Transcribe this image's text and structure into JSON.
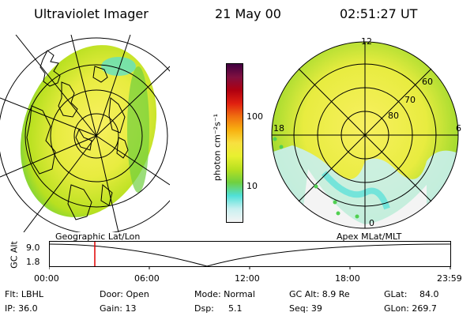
{
  "header": {
    "instrument": "Ultraviolet Imager",
    "date": "21 May 00",
    "time": "02:51:27 UT"
  },
  "colorbar": {
    "unit_label": "photon cm⁻²s⁻¹",
    "tick_100": "100",
    "tick_10": "10",
    "colors": [
      "#f4f4f4",
      "#c8f0f0",
      "#50e0d8",
      "#70d040",
      "#b8e020",
      "#e8f030",
      "#f8e040",
      "#f8b010",
      "#f07010",
      "#e02010",
      "#b00010",
      "#801040",
      "#400040"
    ]
  },
  "left_panel": {
    "label": "Geographic Lat/Lon"
  },
  "right_panel": {
    "label": "Apex MLat/MLT",
    "mlt_12": "12",
    "mlt_18": "18",
    "mlt_6": "6",
    "mlt_0": "0",
    "lat_60": "60",
    "lat_70": "70",
    "lat_80": "80"
  },
  "timeline": {
    "ylabel": "GC Alt",
    "y_top": "9.0",
    "y_bottom": "1.8",
    "ticks": [
      "00:00",
      "06:00",
      "12:00",
      "18:00",
      "23:59"
    ],
    "marker_color": "#e00000"
  },
  "footer": {
    "flt": "Flt: LBHL",
    "ip": "IP: 36.0",
    "door": "Door: Open",
    "gain": "Gain: 13",
    "mode": "Mode: Normal",
    "dsp_label": "Dsp:",
    "dsp_value": "5.1",
    "gcalt": "GC Alt: 8.9 Re",
    "seq": "Seq: 39",
    "glat_label": "GLat:",
    "glat_value": "84.0",
    "glon": "GLon: 269.7"
  }
}
